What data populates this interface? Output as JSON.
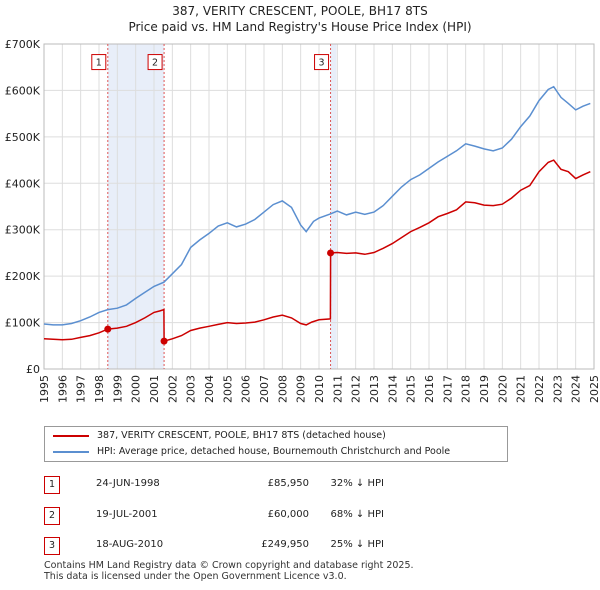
{
  "title": "387, VERITY CRESCENT, POOLE, BH17 8TS",
  "subtitle": "Price paid vs. HM Land Registry's House Price Index (HPI)",
  "chart_data": {
    "type": "line",
    "title": "387, VERITY CRESCENT, POOLE, BH17 8TS",
    "subtitle": "Price paid vs. HM Land Registry's House Price Index (HPI)",
    "xlim": [
      1995,
      2025
    ],
    "ylim": [
      0,
      700000
    ],
    "x_ticks": [
      1995,
      1996,
      1997,
      1998,
      1999,
      2000,
      2001,
      2002,
      2003,
      2004,
      2005,
      2006,
      2007,
      2008,
      2009,
      2010,
      2011,
      2012,
      2013,
      2014,
      2015,
      2016,
      2017,
      2018,
      2019,
      2020,
      2021,
      2022,
      2023,
      2024,
      2025
    ],
    "y_ticks": [
      0,
      100000,
      200000,
      300000,
      400000,
      500000,
      600000,
      700000
    ],
    "y_tick_labels": [
      "£0",
      "£100K",
      "£200K",
      "£300K",
      "£400K",
      "£500K",
      "£600K",
      "£700K"
    ],
    "grid": true,
    "series": [
      {
        "name": "387, VERITY CRESCENT, POOLE, BH17 8TS (detached house)",
        "color": "#cc0000",
        "points": [
          [
            1995.0,
            65000
          ],
          [
            1995.5,
            64000
          ],
          [
            1996.0,
            63000
          ],
          [
            1996.5,
            64000
          ],
          [
            1997.0,
            68000
          ],
          [
            1997.5,
            72000
          ],
          [
            1998.0,
            78000
          ],
          [
            1998.48,
            85950
          ],
          [
            1999.0,
            88000
          ],
          [
            1999.5,
            92000
          ],
          [
            2000.0,
            100000
          ],
          [
            2000.5,
            110000
          ],
          [
            2001.0,
            122000
          ],
          [
            2001.3,
            125000
          ],
          [
            2001.54,
            128000
          ],
          [
            2001.55,
            60000
          ],
          [
            2002.0,
            65000
          ],
          [
            2002.5,
            72000
          ],
          [
            2003.0,
            83000
          ],
          [
            2003.5,
            88000
          ],
          [
            2004.0,
            92000
          ],
          [
            2004.5,
            96000
          ],
          [
            2005.0,
            100000
          ],
          [
            2005.5,
            98000
          ],
          [
            2006.0,
            99000
          ],
          [
            2006.5,
            101000
          ],
          [
            2007.0,
            106000
          ],
          [
            2007.5,
            112000
          ],
          [
            2008.0,
            116000
          ],
          [
            2008.5,
            110000
          ],
          [
            2009.0,
            98000
          ],
          [
            2009.3,
            95000
          ],
          [
            2009.6,
            101000
          ],
          [
            2010.0,
            106000
          ],
          [
            2010.62,
            108000
          ],
          [
            2010.63,
            249950
          ],
          [
            2011.0,
            251000
          ],
          [
            2011.5,
            249000
          ],
          [
            2012.0,
            250000
          ],
          [
            2012.5,
            247000
          ],
          [
            2013.0,
            251000
          ],
          [
            2013.5,
            260000
          ],
          [
            2014.0,
            270000
          ],
          [
            2014.5,
            283000
          ],
          [
            2015.0,
            296000
          ],
          [
            2015.5,
            305000
          ],
          [
            2016.0,
            315000
          ],
          [
            2016.5,
            328000
          ],
          [
            2017.0,
            335000
          ],
          [
            2017.5,
            343000
          ],
          [
            2018.0,
            360000
          ],
          [
            2018.5,
            358000
          ],
          [
            2019.0,
            353000
          ],
          [
            2019.5,
            352000
          ],
          [
            2020.0,
            355000
          ],
          [
            2020.5,
            368000
          ],
          [
            2021.0,
            385000
          ],
          [
            2021.5,
            395000
          ],
          [
            2022.0,
            425000
          ],
          [
            2022.5,
            445000
          ],
          [
            2022.8,
            450000
          ],
          [
            2023.2,
            430000
          ],
          [
            2023.6,
            425000
          ],
          [
            2024.0,
            410000
          ],
          [
            2024.4,
            418000
          ],
          [
            2024.8,
            425000
          ]
        ]
      },
      {
        "name": "HPI: Average price, detached house, Bournemouth Christchurch and Poole",
        "color": "#5b8fd0",
        "points": [
          [
            1995.0,
            97000
          ],
          [
            1995.5,
            95000
          ],
          [
            1996.0,
            95000
          ],
          [
            1996.5,
            98000
          ],
          [
            1997.0,
            104000
          ],
          [
            1997.5,
            112000
          ],
          [
            1998.0,
            122000
          ],
          [
            1998.48,
            128000
          ],
          [
            1999.0,
            131000
          ],
          [
            1999.5,
            138000
          ],
          [
            2000.0,
            152000
          ],
          [
            2000.5,
            165000
          ],
          [
            2001.0,
            178000
          ],
          [
            2001.54,
            187000
          ],
          [
            2002.0,
            205000
          ],
          [
            2002.5,
            225000
          ],
          [
            2003.0,
            262000
          ],
          [
            2003.5,
            278000
          ],
          [
            2004.0,
            292000
          ],
          [
            2004.5,
            308000
          ],
          [
            2005.0,
            315000
          ],
          [
            2005.5,
            306000
          ],
          [
            2006.0,
            312000
          ],
          [
            2006.5,
            322000
          ],
          [
            2007.0,
            338000
          ],
          [
            2007.5,
            354000
          ],
          [
            2008.0,
            362000
          ],
          [
            2008.5,
            348000
          ],
          [
            2009.0,
            310000
          ],
          [
            2009.3,
            296000
          ],
          [
            2009.7,
            318000
          ],
          [
            2010.0,
            325000
          ],
          [
            2010.62,
            334000
          ],
          [
            2011.0,
            340000
          ],
          [
            2011.5,
            332000
          ],
          [
            2012.0,
            338000
          ],
          [
            2012.5,
            333000
          ],
          [
            2013.0,
            338000
          ],
          [
            2013.5,
            352000
          ],
          [
            2014.0,
            372000
          ],
          [
            2014.5,
            392000
          ],
          [
            2015.0,
            408000
          ],
          [
            2015.5,
            418000
          ],
          [
            2016.0,
            432000
          ],
          [
            2016.5,
            446000
          ],
          [
            2017.0,
            458000
          ],
          [
            2017.5,
            470000
          ],
          [
            2018.0,
            485000
          ],
          [
            2018.5,
            480000
          ],
          [
            2019.0,
            474000
          ],
          [
            2019.5,
            470000
          ],
          [
            2020.0,
            476000
          ],
          [
            2020.5,
            495000
          ],
          [
            2021.0,
            522000
          ],
          [
            2021.5,
            545000
          ],
          [
            2022.0,
            578000
          ],
          [
            2022.5,
            602000
          ],
          [
            2022.8,
            608000
          ],
          [
            2023.2,
            585000
          ],
          [
            2023.6,
            572000
          ],
          [
            2024.0,
            558000
          ],
          [
            2024.4,
            566000
          ],
          [
            2024.8,
            572000
          ]
        ]
      }
    ],
    "sales": [
      {
        "label": "1",
        "x": 1998.48,
        "y": 85950
      },
      {
        "label": "2",
        "x": 2001.55,
        "y": 60000
      },
      {
        "label": "3",
        "x": 2010.63,
        "y": 249950
      }
    ],
    "shaded_ranges": [
      [
        1998.48,
        2001.55
      ],
      [
        2010.63,
        2010.95
      ]
    ],
    "marker_label_value": 660000
  },
  "legend": {
    "property": "387, VERITY CRESCENT, POOLE, BH17 8TS (detached house)",
    "hpi": "HPI: Average price, detached house, Bournemouth Christchurch and Poole"
  },
  "transactions": [
    {
      "label": "1",
      "date": "24-JUN-1998",
      "price": "£85,950",
      "hpi": "32% ↓ HPI"
    },
    {
      "label": "2",
      "date": "19-JUL-2001",
      "price": "£60,000",
      "hpi": "68% ↓ HPI"
    },
    {
      "label": "3",
      "date": "18-AUG-2010",
      "price": "£249,950",
      "hpi": "25% ↓ HPI"
    }
  ],
  "footer": {
    "line1": "Contains HM Land Registry data © Crown copyright and database right 2025.",
    "line2": "This data is licensed under the Open Government Licence v3.0."
  }
}
